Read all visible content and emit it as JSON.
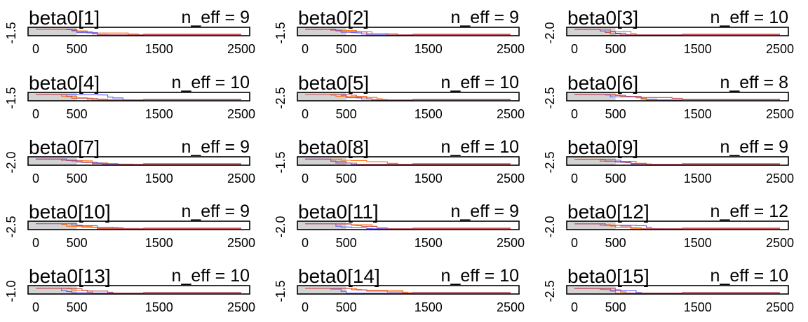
{
  "colors": {
    "warmup_fill": "#d3d3d3",
    "chain_1": "#ff6a00",
    "chain_2": "#5a5aff",
    "chain_3": "#c85050",
    "frame": "#000000"
  },
  "chart_data": {
    "type": "line",
    "layout": "5 rows x 3 columns",
    "x_ticks": [
      "0",
      "500",
      "1500",
      "2500"
    ],
    "xlim": [
      0,
      2500
    ],
    "warmup_iterations": 500,
    "grid": false,
    "panels": [
      {
        "title": "beta0[1]",
        "neff": "n_eff = 9",
        "ytick": "-1.5"
      },
      {
        "title": "beta0[2]",
        "neff": "n_eff = 9",
        "ytick": "-1.5"
      },
      {
        "title": "beta0[3]",
        "neff": "n_eff = 10",
        "ytick": "-2.0"
      },
      {
        "title": "beta0[4]",
        "neff": "n_eff = 10",
        "ytick": "-1.5"
      },
      {
        "title": "beta0[5]",
        "neff": "n_eff = 10",
        "ytick": "-2.5"
      },
      {
        "title": "beta0[6]",
        "neff": "n_eff = 8",
        "ytick": "-2.5"
      },
      {
        "title": "beta0[7]",
        "neff": "n_eff = 9",
        "ytick": "-2.0"
      },
      {
        "title": "beta0[8]",
        "neff": "n_eff = 10",
        "ytick": "-1.5"
      },
      {
        "title": "beta0[9]",
        "neff": "n_eff = 9",
        "ytick": "-2.5"
      },
      {
        "title": "beta0[10]",
        "neff": "n_eff = 9",
        "ytick": "-2.5"
      },
      {
        "title": "beta0[11]",
        "neff": "n_eff = 9",
        "ytick": "-2.0"
      },
      {
        "title": "beta0[12]",
        "neff": "n_eff = 12",
        "ytick": "-2.0"
      },
      {
        "title": "beta0[13]",
        "neff": "n_eff = 10",
        "ytick": "-1.0"
      },
      {
        "title": "beta0[14]",
        "neff": "n_eff = 10",
        "ytick": "-1.5"
      },
      {
        "title": "beta0[15]",
        "neff": "n_eff = 10",
        "ytick": "-2.5"
      }
    ]
  }
}
